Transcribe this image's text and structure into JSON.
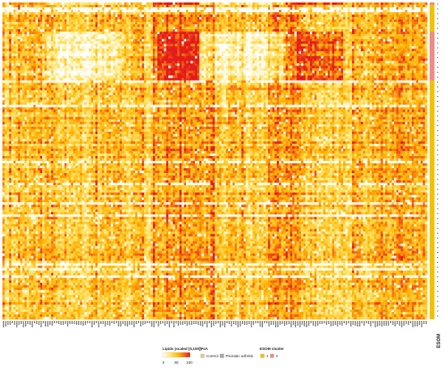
{
  "chart_data": {
    "type": "heatmap",
    "n_rows": 130,
    "n_cols": 192,
    "value_range": [
      0,
      100
    ],
    "colormap": [
      "#ffffff",
      "#ffe46a",
      "#ffb200",
      "#f04f1c",
      "#e31b1b"
    ],
    "legend_lipids": {
      "title": "Lipids (scaled [0,100])",
      "ticks": [
        "0",
        "50",
        "100"
      ]
    },
    "legend_psa": {
      "title": "PsA",
      "items": [
        {
          "label": "Control",
          "color": "#e8c98f"
        },
        {
          "label": "Psoriatic arthritis",
          "color": "#a9a9a9"
        }
      ]
    },
    "legend_esom": {
      "title": "ESOM cluster",
      "items": [
        {
          "label": "1",
          "color": "#f2c200"
        },
        {
          "label": "2",
          "color": "#ee8c86"
        }
      ]
    },
    "side_label": "ESOM",
    "row_clusters": [
      {
        "cluster": "2",
        "row_from": 0,
        "row_to": 1
      },
      {
        "cluster": "1",
        "row_from": 1,
        "row_to": 12
      },
      {
        "cluster": "2",
        "row_from": 12,
        "row_to": 32
      },
      {
        "cluster": "1",
        "row_from": 32,
        "row_to": 130
      }
    ]
  }
}
